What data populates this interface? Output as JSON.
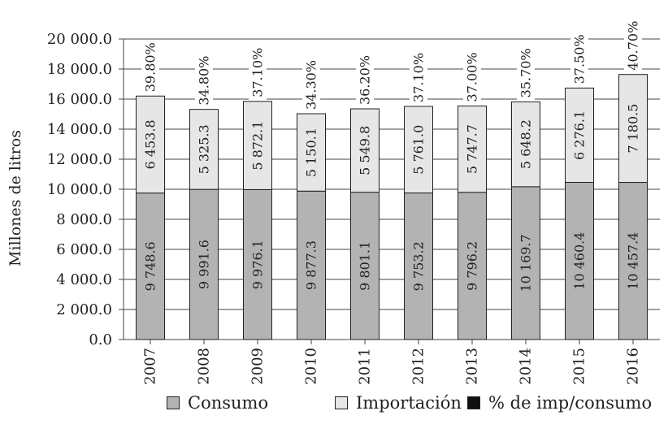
{
  "chart_data": {
    "type": "bar",
    "stacked": true,
    "ylabel": "Millones de litros",
    "ylim": [
      0,
      20000
    ],
    "yticks": [
      "0.0",
      "2 000.0",
      "4 000.0",
      "6 000.0",
      "8 000.0",
      "10 000.0",
      "12 000.0",
      "14 000.0",
      "16 000.0",
      "18 000.0",
      "20 000.0"
    ],
    "categories": [
      "2007",
      "2008",
      "2009",
      "2010",
      "2011",
      "2012",
      "2013",
      "2014",
      "2015",
      "2016"
    ],
    "series": [
      {
        "name": "Consumo",
        "color": "#b3b3b3",
        "values": [
          9748.6,
          9991.6,
          9976.1,
          9877.3,
          9801.1,
          9753.2,
          9796.2,
          10169.7,
          10460.4,
          10457.4
        ],
        "labels": [
          "9 748.6",
          "9 991.6",
          "9 976.1",
          "9 877.3",
          "9 801.1",
          "9 753.2",
          "9 796.2",
          "10 169.7",
          "10 460.4",
          "10 457.4"
        ]
      },
      {
        "name": "Importación",
        "color": "#e6e6e6",
        "values": [
          6453.8,
          5325.3,
          5872.1,
          5150.1,
          5549.8,
          5761.0,
          5747.7,
          5648.2,
          6276.1,
          7180.5
        ],
        "labels": [
          "6 453.8",
          "5 325.3",
          "5 872.1",
          "5 150.1",
          "5 549.8",
          "5 761.0",
          "5 747.7",
          "5 648.2",
          "6 276.1",
          "7 180.5"
        ]
      }
    ],
    "pct_series": {
      "name": "% de imp/consumo",
      "color": "#111111",
      "labels": [
        "39.80%",
        "34.80%",
        "37.10%",
        "34.30%",
        "36.20%",
        "37.10%",
        "37.00%",
        "35.70%",
        "37.50%",
        "40.70%"
      ]
    },
    "legend_position": "bottom",
    "grid": true
  }
}
